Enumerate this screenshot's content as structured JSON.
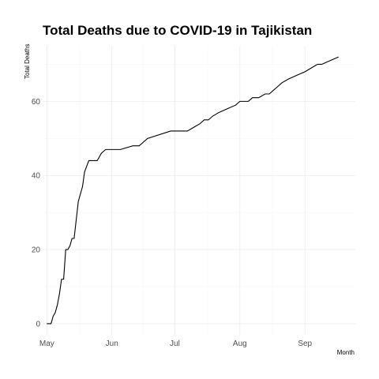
{
  "chart_data": {
    "type": "line",
    "title": "Total Deaths due to COVID-19 in Tajikistan",
    "xlabel": "Month",
    "ylabel": "Total Deaths",
    "xlim": [
      "2020-04-29",
      "2020-09-25"
    ],
    "ylim": [
      -3,
      75
    ],
    "x_ticks": [
      {
        "date": "2020-05-01",
        "label": "May"
      },
      {
        "date": "2020-06-01",
        "label": "Jun"
      },
      {
        "date": "2020-07-01",
        "label": "Jul"
      },
      {
        "date": "2020-08-01",
        "label": "Aug"
      },
      {
        "date": "2020-09-01",
        "label": "Sep"
      }
    ],
    "y_ticks": [
      0,
      20,
      40,
      60
    ],
    "grid": true,
    "series": [
      {
        "color": "#000000",
        "x": [
          "2020-05-01",
          "2020-05-03",
          "2020-05-04",
          "2020-05-05",
          "2020-05-06",
          "2020-05-07",
          "2020-05-08",
          "2020-05-09",
          "2020-05-10",
          "2020-05-11",
          "2020-05-12",
          "2020-05-13",
          "2020-05-14",
          "2020-05-15",
          "2020-05-16",
          "2020-05-18",
          "2020-05-19",
          "2020-05-21",
          "2020-05-25",
          "2020-05-27",
          "2020-05-29",
          "2020-06-05",
          "2020-06-11",
          "2020-06-12",
          "2020-06-14",
          "2020-06-16",
          "2020-06-18",
          "2020-06-29",
          "2020-06-30",
          "2020-07-02",
          "2020-07-04",
          "2020-07-07",
          "2020-07-10",
          "2020-07-13",
          "2020-07-15",
          "2020-07-17",
          "2020-07-19",
          "2020-07-22",
          "2020-07-26",
          "2020-07-30",
          "2020-08-01",
          "2020-08-05",
          "2020-08-07",
          "2020-08-10",
          "2020-08-13",
          "2020-08-15",
          "2020-08-17",
          "2020-08-19",
          "2020-08-21",
          "2020-08-24",
          "2020-08-28",
          "2020-09-01",
          "2020-09-04",
          "2020-09-07",
          "2020-09-09",
          "2020-09-13",
          "2020-09-17"
        ],
        "values": [
          0,
          0,
          2,
          3,
          5,
          8,
          12,
          12,
          20,
          20,
          21,
          23,
          23,
          28,
          33,
          37,
          41,
          44,
          44,
          46,
          47,
          47,
          48,
          48,
          48,
          49,
          50,
          52,
          52,
          52,
          52,
          52,
          53,
          54,
          55,
          55,
          56,
          57,
          58,
          59,
          60,
          60,
          61,
          61,
          62,
          62,
          63,
          64,
          65,
          66,
          67,
          68,
          69,
          70,
          70,
          71,
          72
        ]
      }
    ]
  }
}
